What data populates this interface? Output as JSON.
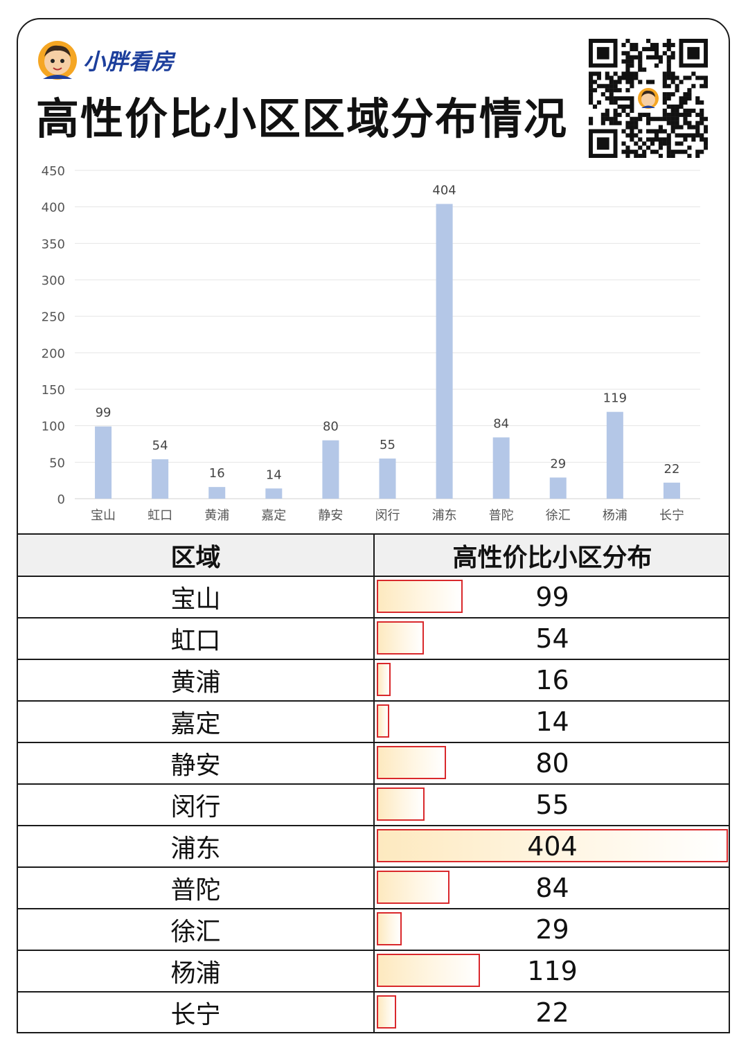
{
  "brand": {
    "name": "小胖看房"
  },
  "title": "高性价比小区区域分布情况",
  "colors": {
    "bar": "#b4c7e7",
    "brand": "#1d3f9c",
    "databar_border": "#d9282b"
  },
  "chart_data": {
    "type": "bar",
    "categories": [
      "宝山",
      "虹口",
      "黄浦",
      "嘉定",
      "静安",
      "闵行",
      "浦东",
      "普陀",
      "徐汇",
      "杨浦",
      "长宁"
    ],
    "values": [
      99,
      54,
      16,
      14,
      80,
      55,
      404,
      84,
      29,
      119,
      22
    ],
    "ylim": [
      0,
      450
    ],
    "yticks": [
      "0",
      "50",
      "100",
      "150",
      "200",
      "250",
      "300",
      "350",
      "400",
      "450"
    ],
    "grid": true
  },
  "table": {
    "headers": [
      "区域",
      "高性价比小区分布"
    ],
    "rows": [
      {
        "region": "宝山",
        "value": "99"
      },
      {
        "region": "虹口",
        "value": "54"
      },
      {
        "region": "黄浦",
        "value": "16"
      },
      {
        "region": "嘉定",
        "value": "14"
      },
      {
        "region": "静安",
        "value": "80"
      },
      {
        "region": "闵行",
        "value": "55"
      },
      {
        "region": "浦东",
        "value": "404"
      },
      {
        "region": "普陀",
        "value": "84"
      },
      {
        "region": "徐汇",
        "value": "29"
      },
      {
        "region": "杨浦",
        "value": "119"
      },
      {
        "region": "长宁",
        "value": "22"
      }
    ]
  }
}
